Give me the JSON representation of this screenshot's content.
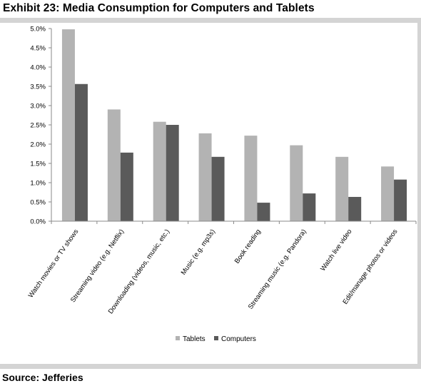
{
  "header": {
    "title": "Exhibit 23: Media Consumption for Computers and Tablets"
  },
  "footer": {
    "source": "Source: Jefferies"
  },
  "colors": {
    "tablets": "#b3b3b3",
    "computers": "#5a5a5a",
    "axis": "#8a8a8a",
    "band": "#d4d4d4"
  },
  "chart_data": {
    "type": "bar",
    "title": "Exhibit 23: Media Consumption for Computers and Tablets",
    "xlabel": "",
    "ylabel": "",
    "ylim": [
      0,
      5.0
    ],
    "yticks": [
      "0.0%",
      "0.5%",
      "1.0%",
      "1.5%",
      "2.0%",
      "2.5%",
      "3.0%",
      "3.5%",
      "4.0%",
      "4.5%",
      "5.0%"
    ],
    "categories": [
      "Watch movies or TV shows",
      "Streaming video (e.g. Netflix)",
      "Downloading  (videos, music, etc.)",
      "Music (e.g. mp3s)",
      "Book reading",
      "Streaming music (e.g. Pandora)",
      "Watch live video",
      "Edit/manage photos or videos"
    ],
    "series": [
      {
        "name": "Tablets",
        "values": [
          4.98,
          2.9,
          2.58,
          2.28,
          2.22,
          1.97,
          1.67,
          1.42
        ]
      },
      {
        "name": "Computers",
        "values": [
          3.56,
          1.78,
          2.5,
          1.67,
          0.48,
          0.72,
          0.63,
          1.08
        ]
      }
    ],
    "grid": false,
    "legend": "bottom"
  }
}
